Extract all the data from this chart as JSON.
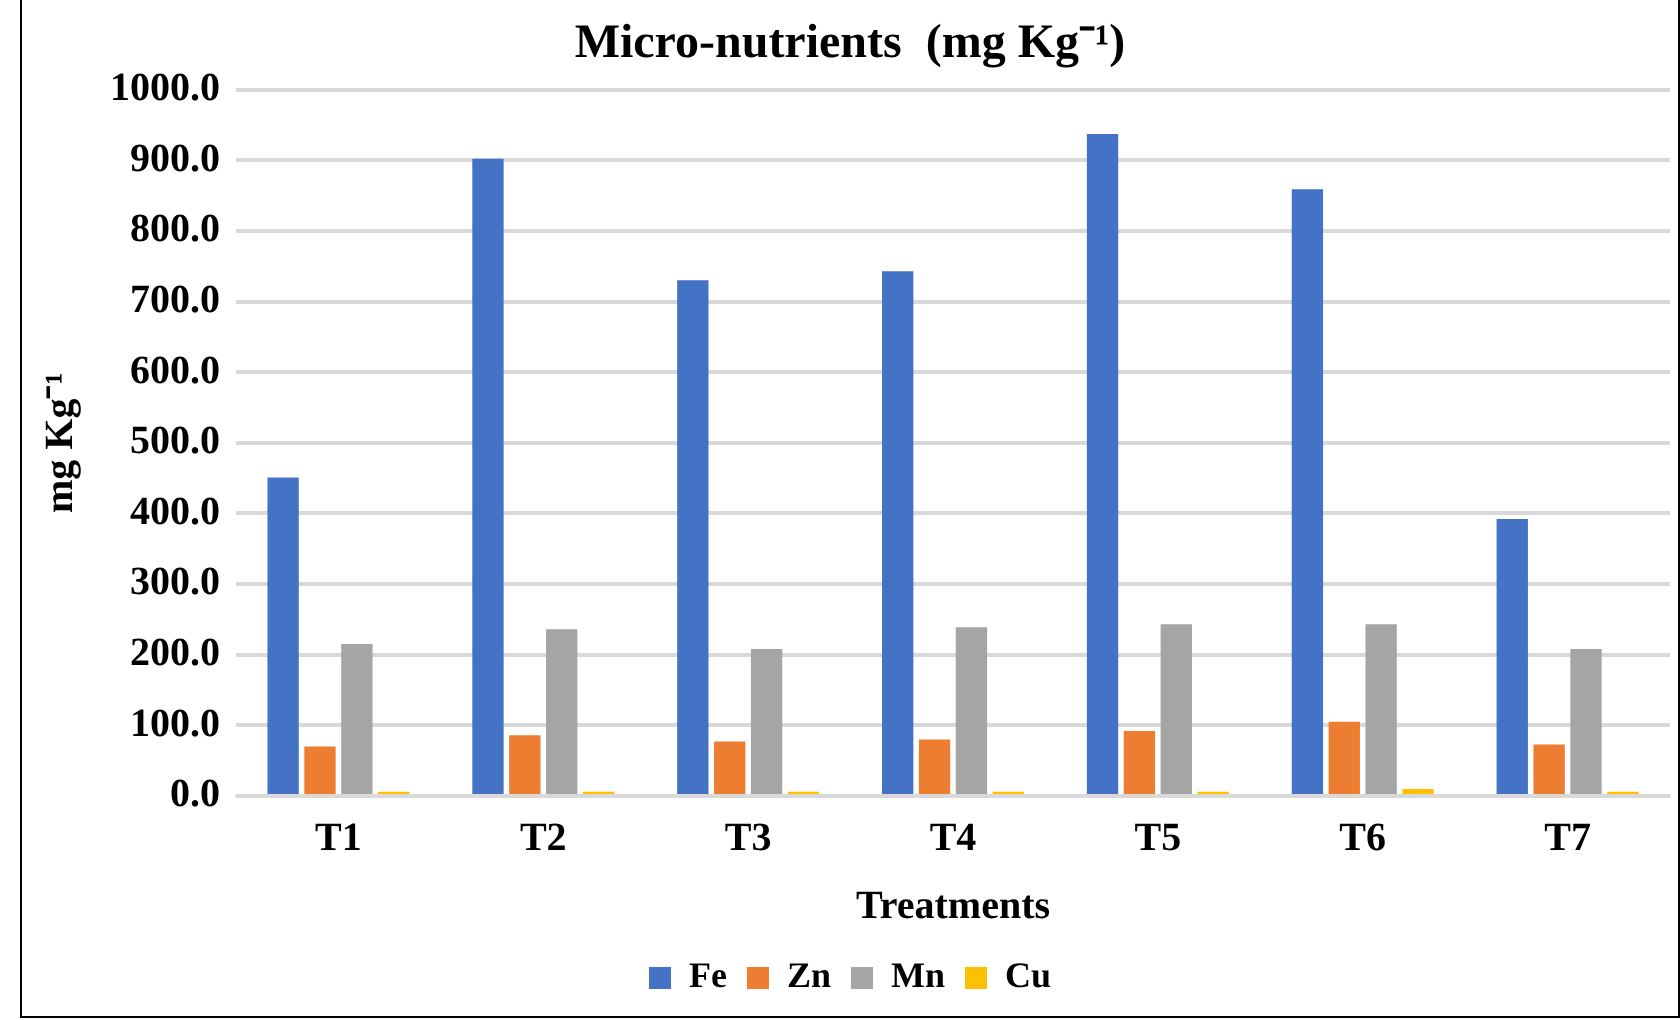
{
  "chart_data": {
    "type": "bar",
    "title": "Micro-nutrients  (mg Kg⁻¹)",
    "xlabel": "Treatments",
    "ylabel": "mg Kg⁻¹",
    "categories": [
      "T1",
      "T2",
      "T3",
      "T4",
      "T5",
      "T6",
      "T7"
    ],
    "series": [
      {
        "name": "Fe",
        "color": "#4472c4",
        "values": [
          451,
          902,
          730,
          743,
          937,
          859,
          392
        ]
      },
      {
        "name": "Zn",
        "color": "#ed7d31",
        "values": [
          70,
          86,
          77,
          80,
          92,
          105,
          73
        ]
      },
      {
        "name": "Mn",
        "color": "#a5a5a5",
        "values": [
          215,
          236,
          208,
          239,
          243,
          243,
          208
        ]
      },
      {
        "name": "Cu",
        "color": "#ffc000",
        "values": [
          6,
          6,
          6,
          6,
          6,
          10,
          6
        ]
      }
    ],
    "ylim": [
      0,
      1000
    ],
    "yticks": [
      {
        "value": 0,
        "label": "0.0"
      },
      {
        "value": 100,
        "label": "100.0"
      },
      {
        "value": 200,
        "label": "200.0"
      },
      {
        "value": 300,
        "label": "300.0"
      },
      {
        "value": 400,
        "label": "400.0"
      },
      {
        "value": 500,
        "label": "500.0"
      },
      {
        "value": 600,
        "label": "600.0"
      },
      {
        "value": 700,
        "label": "700.0"
      },
      {
        "value": 800,
        "label": "800.0"
      },
      {
        "value": 900,
        "label": "900.0"
      },
      {
        "value": 1000,
        "label": "1000.0"
      }
    ],
    "grid": "y",
    "legend": "bottom"
  }
}
